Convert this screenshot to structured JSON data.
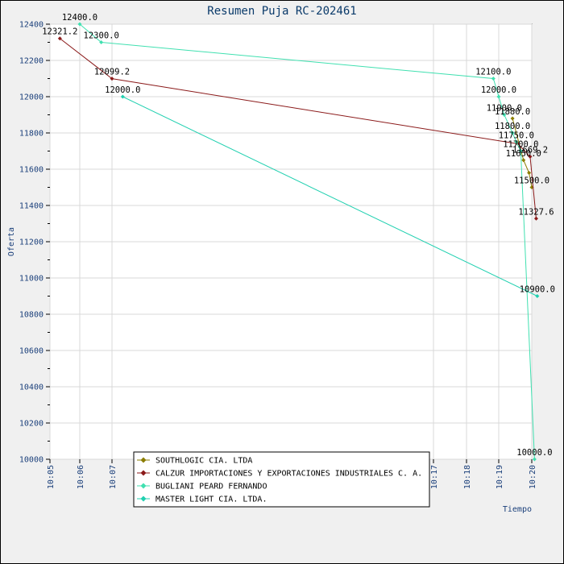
{
  "chart_data": {
    "type": "line",
    "title": "Resumen Puja RC-202461",
    "xlabel": "Tiempo",
    "ylabel": "Oferta",
    "ylim": [
      10000,
      12400
    ],
    "yticks": [
      10000,
      10200,
      10400,
      10600,
      10800,
      11000,
      11200,
      11400,
      11600,
      11800,
      12000,
      12200,
      12400
    ],
    "xlim": [
      "10:05",
      "10:20"
    ],
    "xticks": [
      "10:05",
      "10:06",
      "10:07",
      "10:17",
      "10:18",
      "10:19",
      "10:20"
    ],
    "grid": true,
    "legend_position": "bottom-center",
    "series": [
      {
        "name": "SOUTHLOGIC CIA. LTDA",
        "color": "#8b7d00",
        "points": [
          {
            "x": "10:19:25",
            "y": 11880.0,
            "label": "11880.0"
          },
          {
            "x": "10:19:45",
            "y": 11650.0,
            "label": "11650.0"
          },
          {
            "x": "10:19:55",
            "y": 11580.0,
            "label": ""
          },
          {
            "x": "10:20:00",
            "y": 11500.0,
            "label": "11500.0"
          }
        ]
      },
      {
        "name": "CALZUR IMPORTACIONES Y EXPORTACIONES INDUSTRIALES C. A.",
        "color": "#8b1a1a",
        "points": [
          {
            "x": "10:05:20",
            "y": 12321.2,
            "label": "12321.2"
          },
          {
            "x": "10:07:00",
            "y": 12099.2,
            "label": "12099.2"
          },
          {
            "x": "10:19:35",
            "y": 11740.0,
            "label": ""
          },
          {
            "x": "10:19:57",
            "y": 11669.2,
            "label": "11669.2"
          },
          {
            "x": "10:20:08",
            "y": 11327.6,
            "label": "11327.6"
          }
        ]
      },
      {
        "name": "BUGLIANI PEARD FERNANDO",
        "color": "#40e0b0",
        "points": [
          {
            "x": "10:06:00",
            "y": 12400.0,
            "label": "12400.0"
          },
          {
            "x": "10:06:40",
            "y": 12300.0,
            "label": "12300.0"
          },
          {
            "x": "10:18:50",
            "y": 12100.0,
            "label": "12100.0"
          },
          {
            "x": "10:19:00",
            "y": 12000.0,
            "label": "12000.0"
          },
          {
            "x": "10:19:10",
            "y": 11900.0,
            "label": "11900.0"
          },
          {
            "x": "10:19:25",
            "y": 11800.0,
            "label": "11800.0"
          },
          {
            "x": "10:19:32",
            "y": 11750.0,
            "label": "11750.0"
          },
          {
            "x": "10:19:40",
            "y": 11700.0,
            "label": "11700.0"
          },
          {
            "x": "10:20:05",
            "y": 10000.0,
            "label": "10000.0"
          }
        ]
      },
      {
        "name": "MASTER LIGHT CIA. LTDA.",
        "color": "#20d0b0",
        "points": [
          {
            "x": "10:07:20",
            "y": 12000.0,
            "label": "12000.0"
          },
          {
            "x": "10:20:10",
            "y": 10900.0,
            "label": "10900.0"
          }
        ]
      }
    ]
  }
}
